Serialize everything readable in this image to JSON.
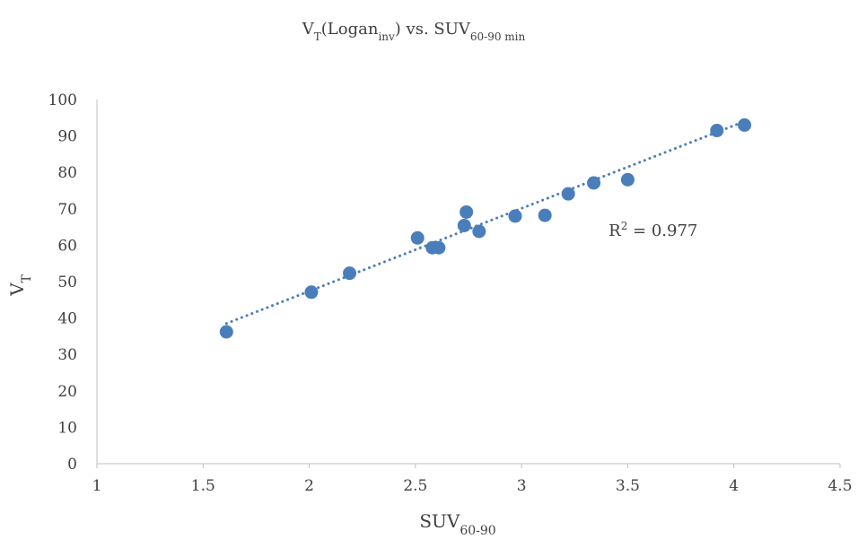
{
  "chart_data": {
    "type": "scatter",
    "title": {
      "parts": [
        {
          "text": "V",
          "style": "normal"
        },
        {
          "text": "T",
          "style": "sub"
        },
        {
          "text": "(Logan",
          "style": "normal"
        },
        {
          "text": "inv",
          "style": "sub"
        },
        {
          "text": ") vs. SUV",
          "style": "normal"
        },
        {
          "text": "60-90 min",
          "style": "sub"
        }
      ]
    },
    "xlabel": {
      "parts": [
        {
          "text": "SUV",
          "style": "normal"
        },
        {
          "text": "60-90",
          "style": "sub"
        }
      ]
    },
    "ylabel": {
      "parts": [
        {
          "text": "V",
          "style": "normal"
        },
        {
          "text": "T",
          "style": "sub"
        }
      ]
    },
    "xlim": [
      1,
      4.5
    ],
    "ylim": [
      0,
      100
    ],
    "xticks": [
      1,
      1.5,
      2,
      2.5,
      3,
      3.5,
      4,
      4.5
    ],
    "yticks": [
      0,
      10,
      20,
      30,
      40,
      50,
      60,
      70,
      80,
      90,
      100
    ],
    "grid": false,
    "legend": "none",
    "colors": {
      "point": "#4a7ebb",
      "trendline": "#4a7ebb",
      "axis": "#bfbfbf"
    },
    "points": [
      {
        "x": 1.61,
        "y": 36.2
      },
      {
        "x": 2.01,
        "y": 47.1
      },
      {
        "x": 2.19,
        "y": 52.3
      },
      {
        "x": 2.51,
        "y": 62.0
      },
      {
        "x": 2.58,
        "y": 59.3
      },
      {
        "x": 2.61,
        "y": 59.3
      },
      {
        "x": 2.73,
        "y": 65.4
      },
      {
        "x": 2.74,
        "y": 69.1
      },
      {
        "x": 2.8,
        "y": 63.8
      },
      {
        "x": 2.97,
        "y": 68.0
      },
      {
        "x": 3.11,
        "y": 68.2
      },
      {
        "x": 3.22,
        "y": 74.1
      },
      {
        "x": 3.34,
        "y": 77.1
      },
      {
        "x": 3.5,
        "y": 78.0
      },
      {
        "x": 3.92,
        "y": 91.5
      },
      {
        "x": 4.05,
        "y": 93.0
      }
    ],
    "trendline": {
      "type": "linear",
      "from": {
        "x": 1.61,
        "y": 38.5
      },
      "to": {
        "x": 4.05,
        "y": 94.0
      }
    },
    "annotation": {
      "parts": [
        {
          "text": "R",
          "style": "normal"
        },
        {
          "text": "2",
          "style": "sup"
        },
        {
          "text": " = 0.977",
          "style": "normal"
        }
      ],
      "at": {
        "x": 3.41,
        "y": 64.5
      }
    }
  }
}
